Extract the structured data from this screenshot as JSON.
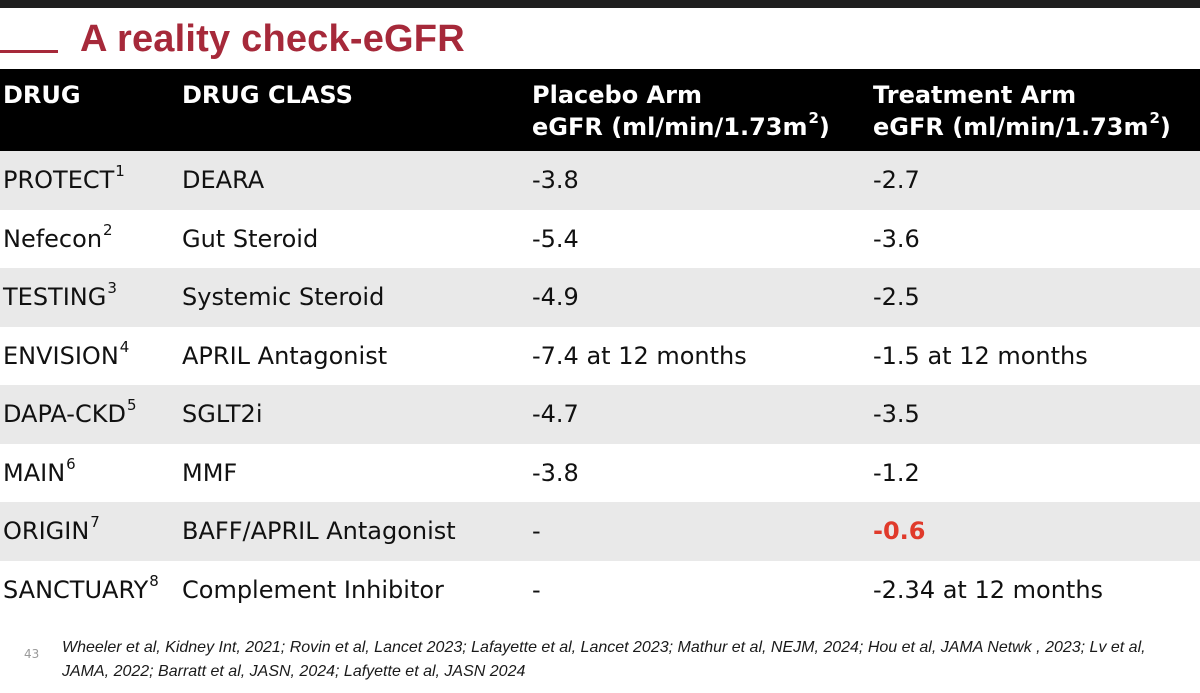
{
  "slide": {
    "title": "A reality check-eGFR",
    "number": "43",
    "references": "Wheeler et al, Kidney Int, 2021; Rovin et al, Lancet 2023; Lafayette et al, Lancet 2023; Mathur et al,  NEJM, 2024; Hou et al,  JAMA Netwk , 2023; Lv et al, JAMA, 2022; Barratt et al, JASN, 2024; Lafyette et al, JASN 2024"
  },
  "table": {
    "headers": {
      "drug": "DRUG",
      "drug_class": "DRUG CLASS",
      "placebo_line1": "Placebo Arm",
      "placebo_line2": "eGFR  (ml/min/1.73m",
      "treatment_line1": "Treatment Arm",
      "treatment_line2": "eGFR (ml/min/1.73m",
      "unit_sup": "2",
      "close_paren": ")"
    },
    "rows": [
      {
        "drug": "PROTECT",
        "ref": "1",
        "drug_class": "DEARA",
        "placebo": "-3.8",
        "treatment": "-2.7"
      },
      {
        "drug": "Nefecon",
        "ref": "2",
        "drug_class": "Gut Steroid",
        "placebo": "-5.4",
        "treatment": "-3.6"
      },
      {
        "drug": "TESTING",
        "ref": "3",
        "drug_class": "Systemic Steroid",
        "placebo": "-4.9",
        "treatment": "-2.5"
      },
      {
        "drug": "ENVISION",
        "ref": "4",
        "drug_class": "APRIL Antagonist",
        "placebo": "-7.4 at 12 months",
        "treatment": "-1.5 at 12 months"
      },
      {
        "drug": "DAPA-CKD",
        "ref": "5",
        "drug_class": "SGLT2i",
        "placebo": "-4.7",
        "treatment": "-3.5"
      },
      {
        "drug": "MAIN",
        "ref": "6",
        "drug_class": "MMF",
        "placebo": "-3.8",
        "treatment": "-1.2"
      },
      {
        "drug": "ORIGIN",
        "ref": "7",
        "drug_class": "BAFF/APRIL Antagonist",
        "placebo": "-",
        "treatment": "-0.6",
        "treatment_highlight": true
      },
      {
        "drug": "SANCTUARY",
        "ref": "8",
        "drug_class": "Complement Inhibitor",
        "placebo": "-",
        "treatment": "-2.34 at 12 months"
      }
    ]
  },
  "colors": {
    "title": "#a6293a",
    "header_bg": "#000000",
    "row_shaded": "#e9e9e9",
    "highlight": "#e03a2b"
  }
}
